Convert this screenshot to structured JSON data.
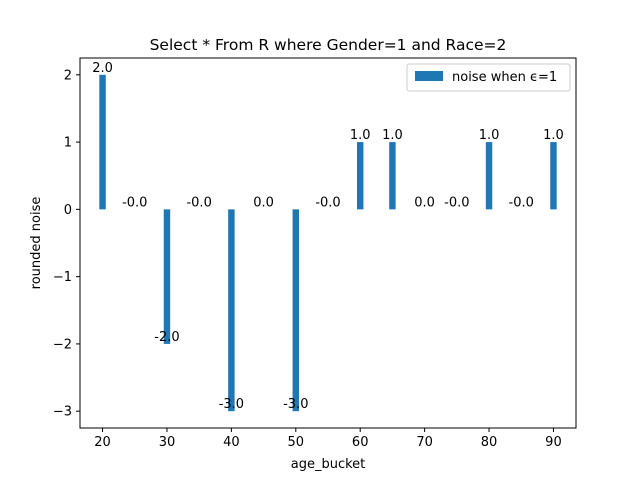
{
  "chart_data": {
    "type": "bar",
    "title": "Select * From R where Gender=1 and Race=2",
    "xlabel": "age_bucket",
    "ylabel": "rounded noise",
    "x": [
      20,
      25,
      30,
      35,
      40,
      45,
      50,
      55,
      60,
      65,
      70,
      75,
      80,
      85,
      90
    ],
    "values": [
      2,
      0,
      -2,
      0,
      -3,
      0,
      -3,
      0,
      1,
      1,
      0,
      0,
      1,
      0,
      1
    ],
    "data_labels": [
      "2.0",
      "-0.0",
      "-2.0",
      "-0.0",
      "-3.0",
      "0.0",
      "-3.0",
      "-0.0",
      "1.0",
      "1.0",
      "0.0",
      "-0.0",
      "1.0",
      "-0.0",
      "1.0"
    ],
    "xticks": [
      20,
      30,
      40,
      50,
      60,
      70,
      80,
      90
    ],
    "xtick_labels": [
      "20",
      "30",
      "40",
      "50",
      "60",
      "70",
      "80",
      "90"
    ],
    "yticks": [
      -3,
      -2,
      -1,
      0,
      1,
      2
    ],
    "ytick_labels": [
      "−3",
      "−2",
      "−1",
      "0",
      "1",
      "2"
    ],
    "xlim": [
      16.5,
      93.5
    ],
    "ylim": [
      -3.25,
      2.25
    ],
    "grid": false,
    "legend_placement": "top-right",
    "series": [
      {
        "name": "noise when ϵ=1",
        "color": "#1f77b4"
      }
    ]
  }
}
